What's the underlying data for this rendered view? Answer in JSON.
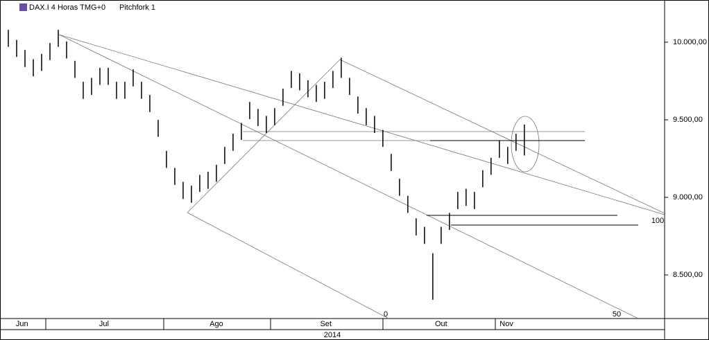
{
  "chart_data": {
    "type": "ohlc",
    "title": "DAX.I 4 Horas TMG+0",
    "subtitle": "Pitchfork 1",
    "x": [
      0,
      2,
      4,
      6,
      8,
      10,
      12,
      14,
      16,
      18,
      20,
      22,
      24,
      26,
      28,
      30,
      32,
      34,
      36,
      38,
      40,
      42,
      44,
      46,
      48,
      50,
      52,
      54,
      56,
      58,
      60,
      62,
      64,
      66,
      68,
      70,
      72,
      74,
      76,
      78,
      80,
      82,
      84,
      86,
      88,
      90,
      92,
      94,
      96,
      98,
      100,
      102,
      104,
      106,
      108,
      110,
      112,
      114,
      116,
      118,
      120,
      122,
      124,
      126
    ],
    "high": [
      10015,
      10080,
      10015,
      9950,
      9890,
      9925,
      9995,
      10080,
      10005,
      9880,
      9745,
      9770,
      9835,
      9835,
      9745,
      9745,
      9825,
      9745,
      9660,
      9500,
      9300,
      9190,
      9100,
      9075,
      9145,
      9165,
      9210,
      9325,
      9410,
      9480,
      9615,
      9570,
      9525,
      9575,
      9700,
      9815,
      9800,
      9755,
      9725,
      9745,
      9815,
      9900,
      9770,
      9650,
      9575,
      9525,
      9435,
      9280,
      9120,
      9010,
      8865,
      8810,
      8640,
      8810,
      8900,
      9035,
      9055,
      9035,
      9175,
      9255,
      9365,
      9325,
      9410,
      9470
    ],
    "low": [
      9905,
      9970,
      9905,
      9840,
      9780,
      9815,
      9885,
      9970,
      9895,
      9770,
      9635,
      9660,
      9725,
      9725,
      9635,
      9635,
      9715,
      9635,
      9550,
      9390,
      9190,
      9080,
      8990,
      8965,
      9035,
      9055,
      9100,
      9215,
      9300,
      9370,
      9505,
      9460,
      9415,
      9465,
      9590,
      9705,
      9690,
      9645,
      9615,
      9635,
      9705,
      9770,
      9660,
      9540,
      9465,
      9415,
      9325,
      9170,
      9010,
      8900,
      8755,
      8700,
      8340,
      8700,
      8790,
      8925,
      8945,
      8925,
      9065,
      9145,
      9255,
      9215,
      9300,
      9270
    ],
    "xlim": [
      0,
      159.7
    ],
    "ylim": [
      8219,
      10272
    ],
    "xticks": [
      {
        "value": 5.3,
        "label": "Jun"
      },
      {
        "value": 25,
        "label": "Jul"
      },
      {
        "value": 52,
        "label": "Ago"
      },
      {
        "value": 78.3,
        "label": "Set"
      },
      {
        "value": 106,
        "label": "Out"
      },
      {
        "value": 121.7,
        "label": "Nov"
      }
    ],
    "yticks": [
      {
        "value": 8500,
        "label": "8.500,00"
      },
      {
        "value": 9000,
        "label": "9.000,00"
      },
      {
        "value": 9500,
        "label": "9.500,00"
      },
      {
        "value": 10000,
        "label": "10.000,00"
      }
    ],
    "year_label": "2014",
    "annotations": [
      "0",
      "50",
      "100"
    ],
    "color": "#000000"
  }
}
